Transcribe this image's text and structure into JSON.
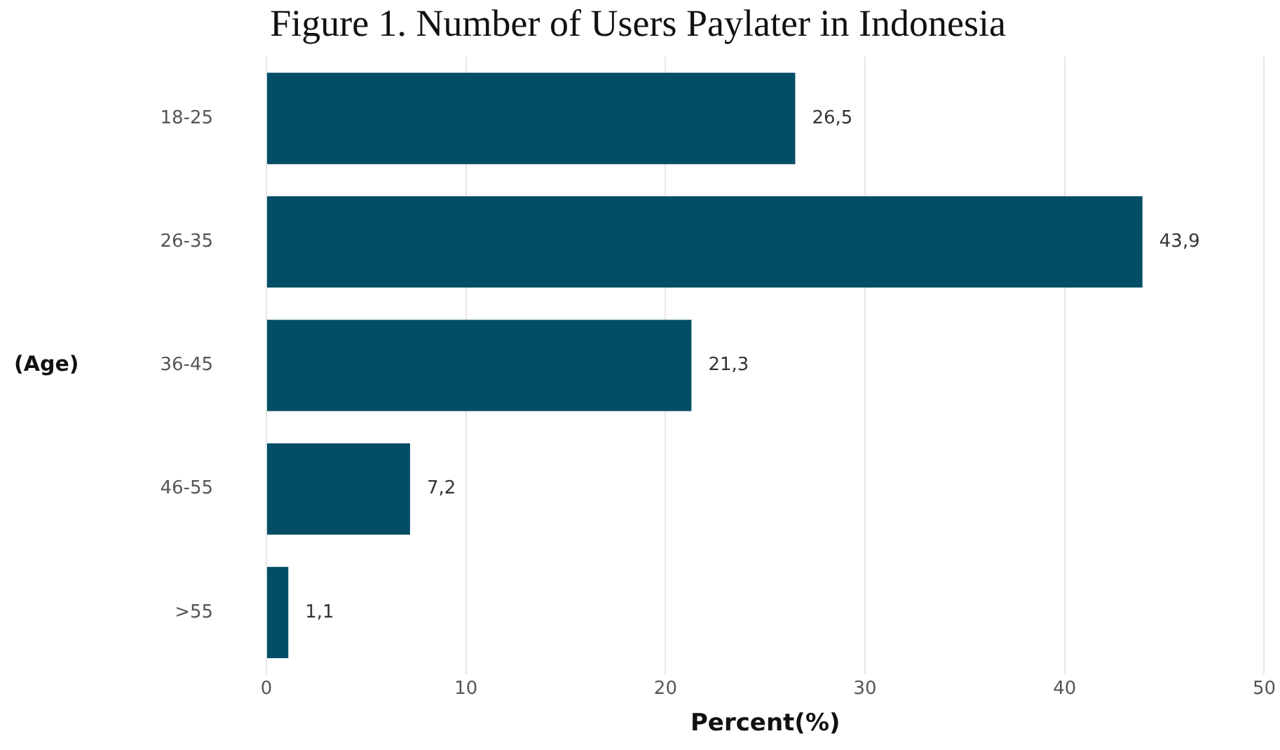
{
  "chart_data": {
    "type": "bar",
    "orientation": "horizontal",
    "title": "Figure 1. Number of Users Paylater in Indonesia",
    "xlabel": "Percent(%)",
    "ylabel": "(Age)",
    "categories": [
      "18-25",
      "26-35",
      "36-45",
      "46-55",
      ">55"
    ],
    "values": [
      26.5,
      43.9,
      21.3,
      7.2,
      1.1
    ],
    "color": "#034e66",
    "value_labels": [
      "26,5",
      "43,9",
      "21,3",
      "7,2",
      "1,1"
    ],
    "xlim": [
      0,
      50
    ],
    "xticks": [
      0,
      10,
      20,
      30,
      40,
      50
    ],
    "grid": "x",
    "legend": false
  }
}
